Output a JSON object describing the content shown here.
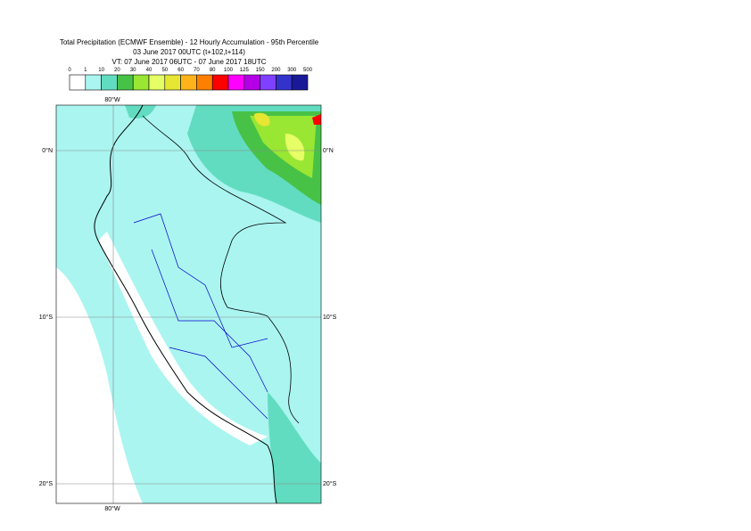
{
  "header": {
    "title": "Total Precipitation (ECMWF Ensemble) - 12 Hourly Accumulation - 95th Percentile",
    "base_time": "03 June 2017 00UTC (t+102,t+114)",
    "valid_time": "VT: 07 June 2017 06UTC - 07 June 2017 18UTC"
  },
  "legend": {
    "levels": [
      0,
      1,
      10,
      20,
      30,
      40,
      50,
      60,
      70,
      80,
      100,
      125,
      150,
      200,
      300,
      500
    ],
    "colors": [
      "#ffffff",
      "#aaf5f0",
      "#62dcc0",
      "#47c247",
      "#99e633",
      "#e6ff66",
      "#e6e633",
      "#ffb31a",
      "#ff8000",
      "#ff0000",
      "#ff00ff",
      "#b300e6",
      "#8040ff",
      "#3333cc",
      "#1a1a99",
      "#0d0d4d"
    ]
  },
  "map": {
    "lon_label": "80°W",
    "lat_labels": [
      "0°N",
      "10°S",
      "20°S"
    ]
  }
}
